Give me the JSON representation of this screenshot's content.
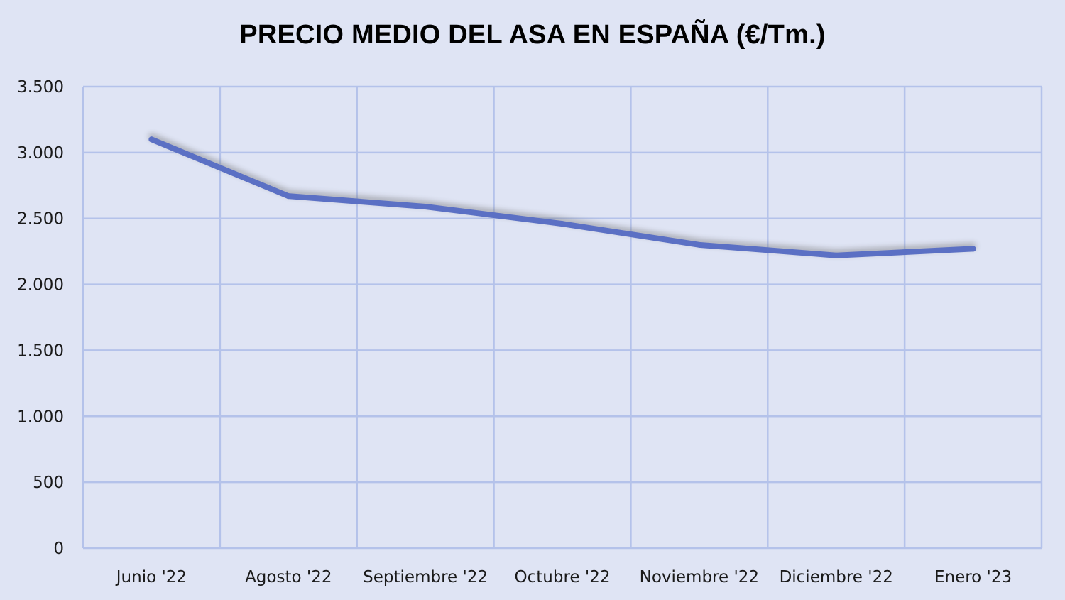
{
  "chart_data": {
    "type": "line",
    "title": "PRECIO MEDIO DEL ASA EN ESPAÑA (€/Tm.)",
    "xlabel": "",
    "ylabel": "",
    "categories": [
      "Junio '22",
      "Agosto '22",
      "Septiembre '22",
      "Octubre '22",
      "Noviembre '22",
      "Diciembre '22",
      "Enero '23"
    ],
    "series": [
      {
        "values": [
          3100,
          2670,
          2590,
          2460,
          2300,
          2220,
          2270
        ],
        "color": "#5b70c4"
      }
    ],
    "ylim": [
      0,
      3500
    ],
    "yticks": [
      0,
      500,
      1000,
      1500,
      2000,
      2500,
      3000,
      3500
    ],
    "ytick_labels": [
      "0",
      "500",
      "1.000",
      "1.500",
      "2.000",
      "2.500",
      "3.000",
      "3.500"
    ],
    "grid": true,
    "legend": "none",
    "colors": {
      "background": "#dfe4f4",
      "grid": "#b4c2ea",
      "line": "#5b70c4"
    }
  }
}
